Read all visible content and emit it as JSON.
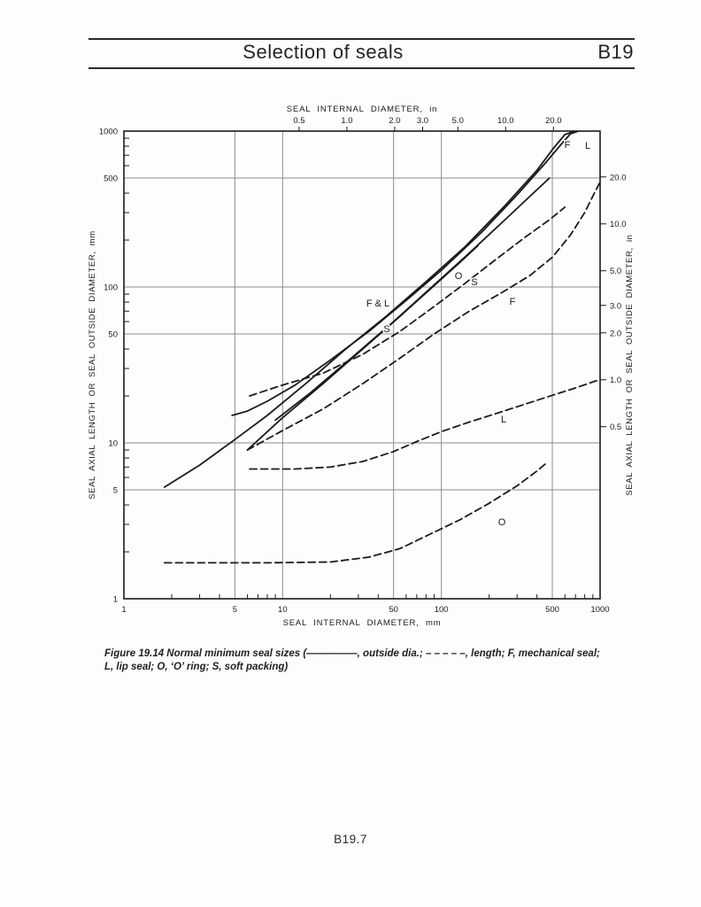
{
  "header": {
    "title": "Selection of seals",
    "section_code": "B19"
  },
  "caption": {
    "line1": "Figure 19.14  Normal minimum seal sizes (—————, outside dia.; – – – – –, length; F, mechanical seal;",
    "line2": "L, lip seal; O, ‘O’ ring; S, soft packing)"
  },
  "footer": {
    "page_number": "B19.7"
  },
  "chart_data": {
    "type": "line",
    "title": "Normal minimum seal sizes",
    "x_scale": "log",
    "y_scale": "log",
    "xlim_mm": [
      1,
      1000
    ],
    "ylim_mm": [
      1,
      1000
    ],
    "mm_per_inch": 25.4,
    "grid": true,
    "grid_values_mm": [
      5,
      10,
      50,
      100,
      500
    ],
    "axes": {
      "top": {
        "label": "SEAL INTERNAL DIAMETER, in",
        "tick_labels": [
          "0.5",
          "1.0",
          "2.0",
          "3.0",
          "5.0",
          "10.0",
          "20.0"
        ],
        "tick_values_in": [
          0.5,
          1.0,
          2.0,
          3.0,
          5.0,
          10.0,
          20.0
        ]
      },
      "bottom": {
        "label": "SEAL INTERNAL DIAMETER, mm",
        "tick_labels": [
          "1",
          "5",
          "10",
          "50",
          "100",
          "500",
          "1000"
        ],
        "tick_values_mm": [
          1,
          5,
          10,
          50,
          100,
          500,
          1000
        ]
      },
      "left": {
        "label": "SEAL AXIAL LENGTH OR SEAL OUTSIDE DIAMETER, mm",
        "tick_labels": [
          "1",
          "5",
          "10",
          "50",
          "100",
          "500",
          "1000"
        ],
        "tick_values_mm": [
          1,
          5,
          10,
          50,
          100,
          500,
          1000
        ]
      },
      "right": {
        "label": "SEAL AXIAL LENGTH OR SEAL OUTSIDE DIAMETER, in",
        "tick_labels": [
          "0.5",
          "1.0",
          "2.0",
          "3.0",
          "5.0",
          "10.0",
          "20.0"
        ],
        "tick_values_in": [
          0.5,
          1.0,
          2.0,
          3.0,
          5.0,
          10.0,
          20.0
        ]
      }
    },
    "legend_note": {
      "solid_line_means": "outside dia.",
      "dashed_line_means": "length",
      "F": "mechanical seal",
      "L": "lip seal",
      "O": "'O' ring",
      "S": "soft packing"
    },
    "series": [
      {
        "name": "F-outside-dia",
        "seal": "mechanical seal",
        "measure": "outside dia.",
        "line_style": "solid",
        "points": [
          [
            1.8,
            5.2
          ],
          [
            3,
            7.2
          ],
          [
            5,
            10.5
          ],
          [
            8,
            15
          ],
          [
            14,
            24
          ],
          [
            25,
            40
          ],
          [
            45,
            65
          ],
          [
            80,
            108
          ],
          [
            140,
            180
          ],
          [
            250,
            330
          ],
          [
            400,
            560
          ],
          [
            500,
            760
          ],
          [
            600,
            950
          ],
          [
            700,
            1000
          ],
          [
            780,
            1012
          ]
        ]
      },
      {
        "name": "L-outside-dia",
        "seal": "lip seal",
        "measure": "outside dia.",
        "line_style": "solid",
        "points": [
          [
            4.8,
            15
          ],
          [
            6,
            16
          ],
          [
            8,
            18.5
          ],
          [
            12,
            23.5
          ],
          [
            20,
            34
          ],
          [
            35,
            52
          ],
          [
            60,
            82
          ],
          [
            100,
            128
          ],
          [
            180,
            225
          ],
          [
            300,
            390
          ],
          [
            450,
            620
          ],
          [
            550,
            790
          ],
          [
            650,
            960
          ],
          [
            730,
            1000
          ],
          [
            800,
            1010
          ]
        ]
      },
      {
        "name": "S-outside-dia",
        "seal": "soft packing",
        "measure": "outside dia.",
        "line_style": "solid",
        "points": [
          [
            9,
            14
          ],
          [
            15,
            21
          ],
          [
            28,
            36
          ],
          [
            50,
            60
          ],
          [
            90,
            103
          ],
          [
            150,
            165
          ],
          [
            250,
            268
          ],
          [
            380,
            400
          ],
          [
            480,
            500
          ]
        ]
      },
      {
        "name": "O-outside-dia",
        "seal": "'O' ring",
        "measure": "outside dia.",
        "line_style": "solid",
        "points": [
          [
            6,
            9
          ],
          [
            10,
            14.5
          ],
          [
            18,
            24
          ],
          [
            32,
            40
          ],
          [
            55,
            65
          ],
          [
            90,
            102
          ],
          [
            130,
            143
          ],
          [
            170,
            184
          ]
        ]
      },
      {
        "name": "S-length",
        "seal": "soft packing",
        "measure": "length",
        "line_style": "dashed",
        "points": [
          [
            6.2,
            20
          ],
          [
            10,
            23.5
          ],
          [
            18,
            28
          ],
          [
            32,
            37
          ],
          [
            55,
            52
          ],
          [
            90,
            75
          ],
          [
            140,
            105
          ],
          [
            220,
            150
          ],
          [
            340,
            210
          ],
          [
            480,
            270
          ],
          [
            600,
            325
          ]
        ]
      },
      {
        "name": "F-length",
        "seal": "mechanical seal",
        "measure": "length",
        "line_style": "dashed",
        "points": [
          [
            6,
            9
          ],
          [
            10,
            12
          ],
          [
            18,
            16.5
          ],
          [
            32,
            24
          ],
          [
            55,
            35
          ],
          [
            90,
            50
          ],
          [
            150,
            70
          ],
          [
            240,
            92
          ],
          [
            360,
            118
          ],
          [
            500,
            155
          ],
          [
            650,
            215
          ],
          [
            800,
            300
          ],
          [
            920,
            400
          ],
          [
            1000,
            470
          ]
        ]
      },
      {
        "name": "L-length",
        "seal": "lip seal",
        "measure": "length",
        "line_style": "dashed",
        "points": [
          [
            6.2,
            6.8
          ],
          [
            12,
            6.8
          ],
          [
            20,
            7.0
          ],
          [
            32,
            7.6
          ],
          [
            50,
            8.8
          ],
          [
            70,
            10.2
          ],
          [
            100,
            11.8
          ],
          [
            150,
            13.6
          ],
          [
            220,
            15.4
          ],
          [
            330,
            17.6
          ],
          [
            500,
            20.2
          ],
          [
            700,
            22.5
          ],
          [
            1000,
            25.5
          ]
        ]
      },
      {
        "name": "O-length",
        "seal": "'O' ring",
        "measure": "length",
        "line_style": "dashed",
        "points": [
          [
            1.8,
            1.7
          ],
          [
            8,
            1.7
          ],
          [
            20,
            1.72
          ],
          [
            35,
            1.85
          ],
          [
            55,
            2.1
          ],
          [
            85,
            2.6
          ],
          [
            130,
            3.2
          ],
          [
            200,
            4.1
          ],
          [
            300,
            5.3
          ],
          [
            400,
            6.6
          ],
          [
            450,
            7.3
          ]
        ]
      }
    ],
    "curve_labels": [
      {
        "text": "F",
        "x": 641,
        "y": 167
      },
      {
        "text": "L",
        "x": 664,
        "y": 168
      },
      {
        "text": "F & L",
        "x": 427,
        "y": 346
      },
      {
        "text": "S",
        "x": 437,
        "y": 375
      },
      {
        "text": "O",
        "x": 518,
        "y": 315
      },
      {
        "text": "S",
        "x": 536,
        "y": 322
      },
      {
        "text": "F",
        "x": 579,
        "y": 344
      },
      {
        "text": "L",
        "x": 569,
        "y": 477
      },
      {
        "text": "O",
        "x": 567,
        "y": 593
      }
    ]
  }
}
